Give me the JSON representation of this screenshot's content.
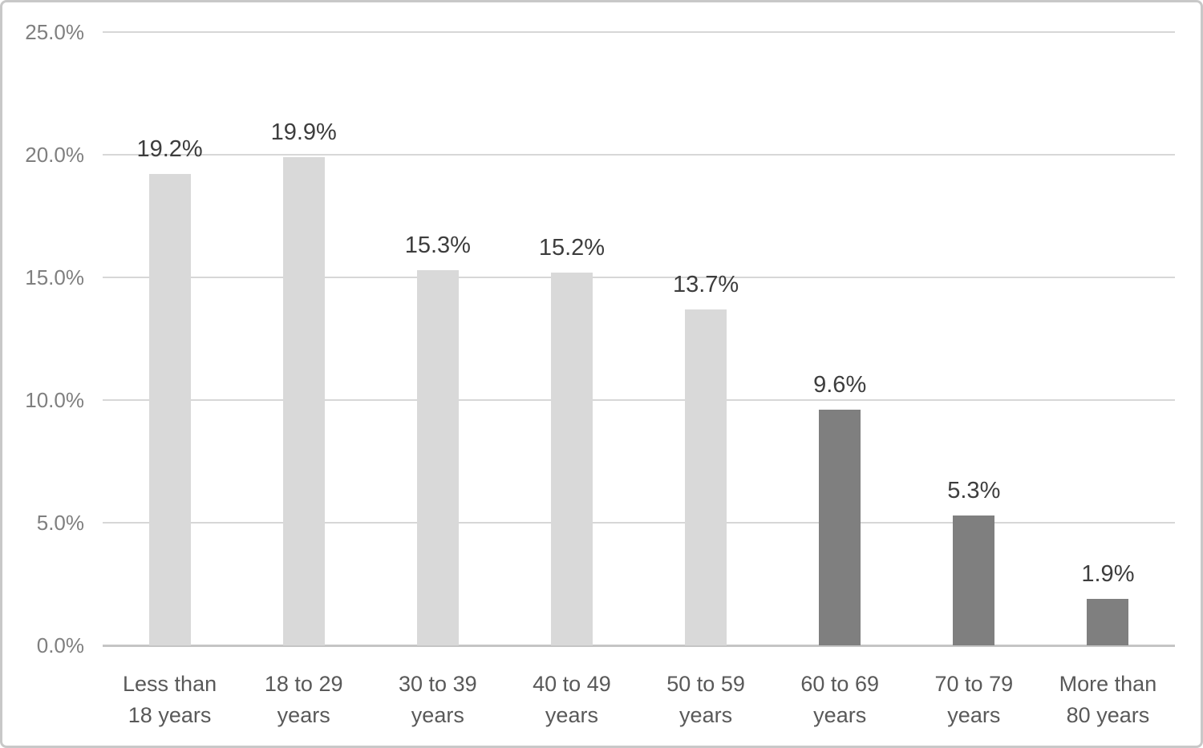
{
  "chart_data": {
    "type": "bar",
    "title": "",
    "xlabel": "",
    "ylabel": "",
    "categories": [
      "Less than 18 years",
      "18 to 29 years",
      "30 to 39 years",
      "40 to 49 years",
      "50 to 59 years",
      "60 to 69 years",
      "70 to 79 years",
      "More than 80 years"
    ],
    "category_display": [
      [
        "Less than",
        "18 years"
      ],
      [
        "18 to 29",
        "years"
      ],
      [
        "30 to 39",
        "years"
      ],
      [
        "40 to 49",
        "years"
      ],
      [
        "50 to 59",
        "years"
      ],
      [
        "60 to 69",
        "years"
      ],
      [
        "70 to 79",
        "years"
      ],
      [
        "More than",
        "80 years"
      ]
    ],
    "values": [
      19.2,
      19.9,
      15.3,
      15.2,
      13.7,
      9.6,
      5.3,
      1.9
    ],
    "value_labels": [
      "19.2%",
      "19.9%",
      "15.3%",
      "15.2%",
      "13.7%",
      "9.6%",
      "5.3%",
      "1.9%"
    ],
    "bar_colors": [
      "#d9d9d9",
      "#d9d9d9",
      "#d9d9d9",
      "#d9d9d9",
      "#d9d9d9",
      "#7f7f7f",
      "#7f7f7f",
      "#7f7f7f"
    ],
    "ylim": [
      0,
      25
    ],
    "yticks": [
      {
        "value": 25,
        "label": "25.0%"
      },
      {
        "value": 20,
        "label": "20.0%"
      },
      {
        "value": 15,
        "label": "15.0%"
      },
      {
        "value": 10,
        "label": "10.0%"
      },
      {
        "value": 5,
        "label": "5.0%"
      },
      {
        "value": 0,
        "label": "0.0%"
      }
    ],
    "grid": true,
    "legend": false
  },
  "style": {
    "light_bar_color": "#d9d9d9",
    "dark_bar_color": "#7f7f7f",
    "gridline_color": "#d7d7d7",
    "axis_line_color": "#c5c5c5",
    "ytick_text_color": "#7f7f7f",
    "xlabel_text_color": "#595959",
    "value_label_text_color": "#3d3d3d",
    "frame_border_color": "#c8c8c8",
    "background_color": "#ffffff"
  }
}
